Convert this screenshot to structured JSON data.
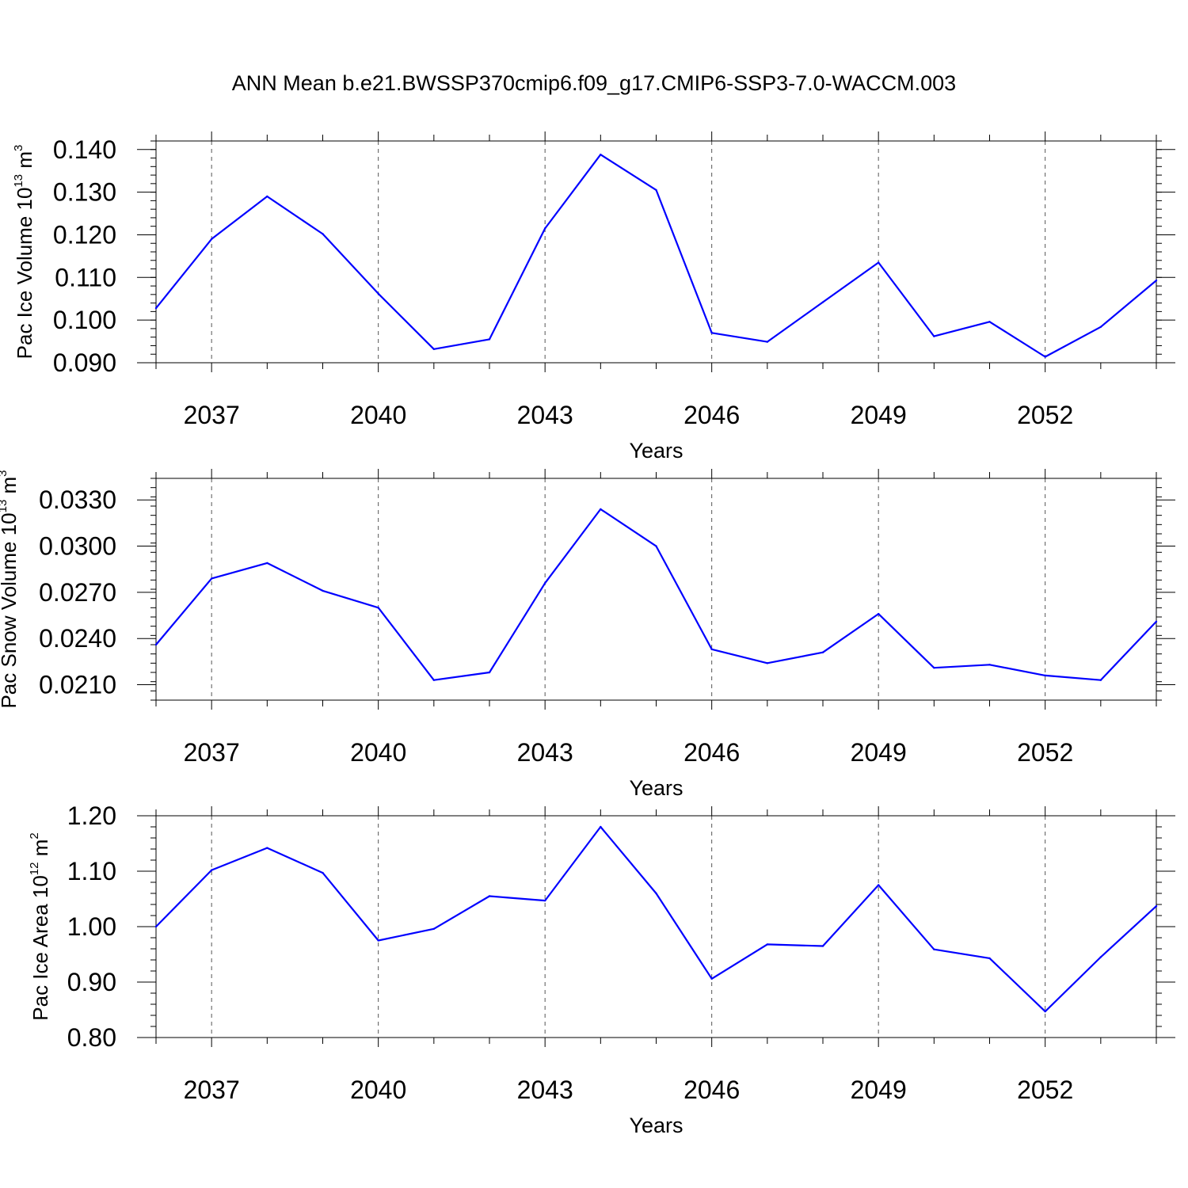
{
  "page_title": "ANN Mean b.e21.BWSSP370cmip6.f09_g17.CMIP6-SSP3-7.0-WACCM.003",
  "chart_data": [
    {
      "type": "line",
      "title": "ANN Mean b.e21.BWSSP370cmip6.f09_g17.CMIP6-SSP3-7.0-WACCM.003",
      "ylabel_main": "Pac Ice Volume 10",
      "ylabel_exp": "13",
      "ylabel_unit": "m",
      "ylabel_unit_exp": "3",
      "xlabel": "Years",
      "xlim": [
        2036,
        2054
      ],
      "ylim": [
        0.09,
        0.142
      ],
      "yticks": [
        0.09,
        0.1,
        0.11,
        0.12,
        0.13,
        0.14
      ],
      "ytick_labels": [
        "0.090",
        "0.100",
        "0.110",
        "0.120",
        "0.130",
        "0.140"
      ],
      "yminor": 0.002,
      "xticks": [
        2037,
        2040,
        2043,
        2046,
        2049,
        2052
      ],
      "xtick_labels": [
        "2037",
        "2040",
        "2043",
        "2046",
        "2049",
        "2052"
      ],
      "grid": "dashed vertical at major x ticks",
      "line_color": "#0000ff",
      "x": [
        2036,
        2037,
        2038,
        2039,
        2040,
        2041,
        2042,
        2043,
        2044,
        2045,
        2046,
        2047,
        2048,
        2049,
        2050,
        2051,
        2052,
        2053,
        2054
      ],
      "y": [
        0.1028,
        0.119,
        0.129,
        0.1202,
        0.1062,
        0.0932,
        0.0955,
        0.1215,
        0.1388,
        0.1305,
        0.097,
        0.0949,
        0.1042,
        0.1135,
        0.0962,
        0.0996,
        0.0914,
        0.0984,
        0.1093
      ]
    },
    {
      "type": "line",
      "ylabel_main": "Pac Snow Volume 10",
      "ylabel_exp": "13",
      "ylabel_unit": "m",
      "ylabel_unit_exp": "3",
      "xlabel": "Years",
      "xlim": [
        2036,
        2054
      ],
      "ylim": [
        0.02,
        0.0344
      ],
      "yticks": [
        0.021,
        0.024,
        0.027,
        0.03,
        0.033
      ],
      "ytick_labels": [
        "0.0210",
        "0.0240",
        "0.0270",
        "0.0300",
        "0.0330"
      ],
      "yminor": 0.0006,
      "xticks": [
        2037,
        2040,
        2043,
        2046,
        2049,
        2052
      ],
      "xtick_labels": [
        "2037",
        "2040",
        "2043",
        "2046",
        "2049",
        "2052"
      ],
      "grid": "dashed vertical at major x ticks",
      "line_color": "#0000ff",
      "x": [
        2036,
        2037,
        2038,
        2039,
        2040,
        2041,
        2042,
        2043,
        2044,
        2045,
        2046,
        2047,
        2048,
        2049,
        2050,
        2051,
        2052,
        2053,
        2054
      ],
      "y": [
        0.0236,
        0.0279,
        0.0289,
        0.0271,
        0.026,
        0.0213,
        0.0218,
        0.0276,
        0.0324,
        0.03,
        0.0233,
        0.0224,
        0.0231,
        0.0256,
        0.0221,
        0.0223,
        0.0216,
        0.0213,
        0.0251
      ]
    },
    {
      "type": "line",
      "ylabel_main": "Pac Ice Area 10",
      "ylabel_exp": "12",
      "ylabel_unit": "m",
      "ylabel_unit_exp": "2",
      "xlabel": "Years",
      "xlim": [
        2036,
        2054
      ],
      "ylim": [
        0.8,
        1.2
      ],
      "yticks": [
        0.8,
        0.9,
        1.0,
        1.1,
        1.2
      ],
      "ytick_labels": [
        "0.80",
        "0.90",
        "1.00",
        "1.10",
        "1.20"
      ],
      "yminor": 0.02,
      "xticks": [
        2037,
        2040,
        2043,
        2046,
        2049,
        2052
      ],
      "xtick_labels": [
        "2037",
        "2040",
        "2043",
        "2046",
        "2049",
        "2052"
      ],
      "grid": "dashed vertical at major x ticks",
      "line_color": "#0000ff",
      "x": [
        2036,
        2037,
        2038,
        2039,
        2040,
        2041,
        2042,
        2043,
        2044,
        2045,
        2046,
        2047,
        2048,
        2049,
        2050,
        2051,
        2052,
        2053,
        2054
      ],
      "y": [
        1.0,
        1.102,
        1.142,
        1.097,
        0.975,
        0.996,
        1.055,
        1.047,
        1.18,
        1.06,
        0.906,
        0.968,
        0.965,
        1.075,
        0.959,
        0.943,
        0.847,
        0.945,
        1.037
      ]
    }
  ]
}
